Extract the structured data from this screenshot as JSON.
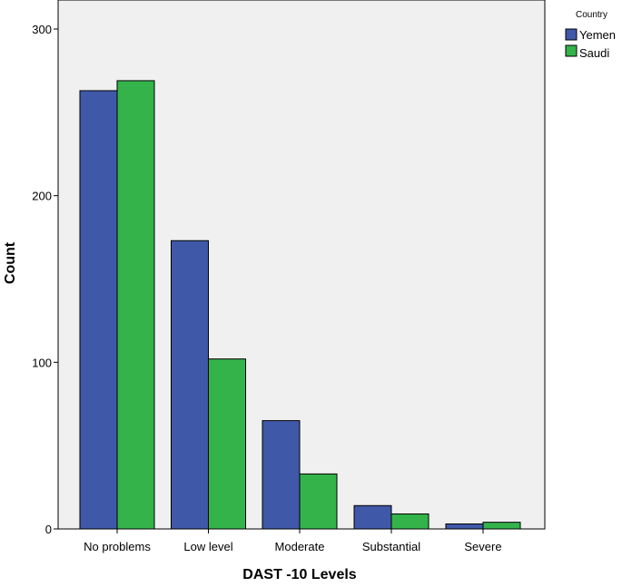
{
  "chart_data": {
    "type": "bar",
    "xlabel": "DAST -10 Levels",
    "ylabel": "Count",
    "categories": [
      "No problems",
      "Low level",
      "Moderate",
      "Substantial",
      "Severe"
    ],
    "series": [
      {
        "name": "Yemen",
        "color": "#3f58a8",
        "values": [
          263,
          173,
          65,
          14,
          3
        ]
      },
      {
        "name": "Saudi",
        "color": "#33b34a",
        "values": [
          269,
          102,
          33,
          9,
          4
        ]
      }
    ],
    "ylim": [
      0,
      300
    ],
    "yticks": [
      0,
      100,
      200,
      300
    ],
    "grid": false,
    "legend": {
      "title": "Country",
      "position": "top-right"
    },
    "plot_background": "#f0f0f0"
  }
}
